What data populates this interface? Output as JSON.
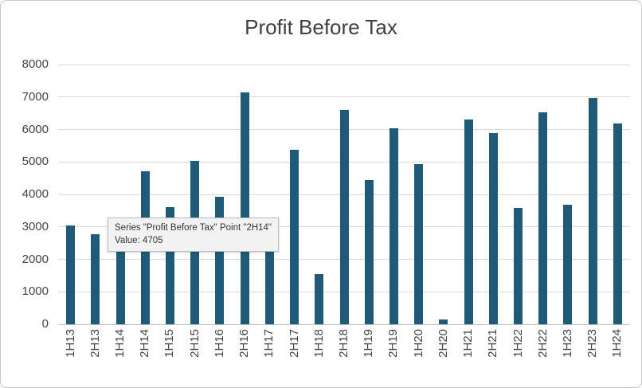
{
  "colors": {
    "bar": "#1f5b78",
    "gridline": "#d9d9d9",
    "baseline": "#bfbfbf",
    "axis_text": "#444444",
    "title_text": "#3f3f3f",
    "tooltip_bg": "#f2f2f2",
    "tooltip_border": "#bdbdbd"
  },
  "chart_data": {
    "type": "bar",
    "title": "Profit Before Tax",
    "series_name": "Profit Before Tax",
    "categories": [
      "1H13",
      "2H13",
      "1H14",
      "2H14",
      "1H15",
      "2H15",
      "1H16",
      "2H16",
      "1H17",
      "2H17",
      "1H18",
      "2H18",
      "1H19",
      "2H19",
      "1H20",
      "2H20",
      "1H21",
      "2H21",
      "1H22",
      "2H22",
      "1H23",
      "2H23",
      "1H24"
    ],
    "values": [
      3050,
      2780,
      3000,
      4705,
      3620,
      5030,
      3930,
      7130,
      3100,
      5370,
      1550,
      6600,
      4430,
      6030,
      4930,
      150,
      6300,
      5890,
      3580,
      6530,
      3680,
      6960,
      6180
    ],
    "xlabel": "",
    "ylabel": "",
    "ylim": [
      0,
      8000
    ],
    "ytick_step": 1000,
    "grid": "horizontal",
    "legend": "none"
  },
  "tooltip": {
    "line1": "Series \"Profit Before Tax\" Point \"2H14\"",
    "line2": "Value: 4705"
  }
}
